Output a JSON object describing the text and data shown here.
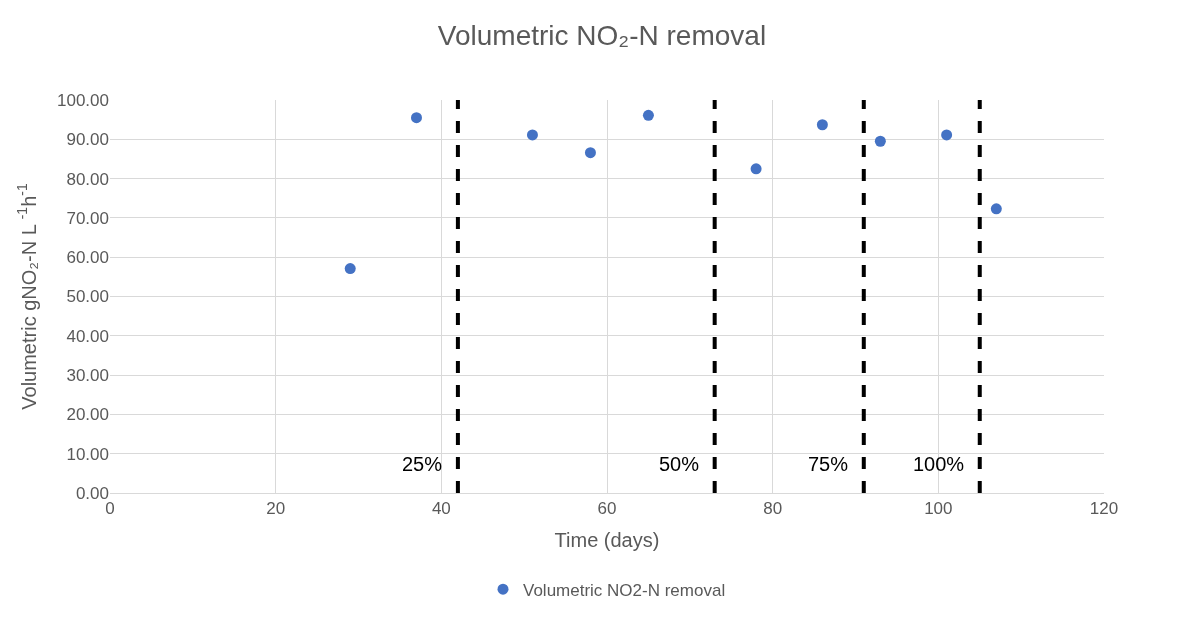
{
  "chart_data": {
    "type": "scatter",
    "title": "Volumetric NO₂-N removal",
    "xlabel": "Time (days)",
    "ylabel": "Volumetric gNO₂-N L $^{-1}$h$^{-1}$",
    "x": [
      29,
      37,
      51,
      58,
      65,
      78,
      86,
      93,
      101,
      107
    ],
    "series": [
      {
        "name": "Volumetric NO2-N removal",
        "color": "#4472c4",
        "values": [
          57.1,
          95.5,
          91.1,
          86.6,
          96.1,
          82.5,
          93.7,
          89.5,
          91.1,
          72.3
        ]
      }
    ],
    "xlim": [
      0,
      120
    ],
    "xticks": [
      0,
      20,
      40,
      60,
      80,
      100,
      120
    ],
    "ylim": [
      0,
      100
    ],
    "yticks": [
      {
        "value": 0,
        "label": "0.00"
      },
      {
        "value": 10,
        "label": "10.00"
      },
      {
        "value": 20,
        "label": "20.00"
      },
      {
        "value": 30,
        "label": "30.00"
      },
      {
        "value": 40,
        "label": "40.00"
      },
      {
        "value": 50,
        "label": "50.00"
      },
      {
        "value": 60,
        "label": "60.00"
      },
      {
        "value": 70,
        "label": "70.00"
      },
      {
        "value": 80,
        "label": "80.00"
      },
      {
        "value": 90,
        "label": "90.00"
      },
      {
        "value": 100,
        "label": "100.00"
      }
    ],
    "ref_lines": [
      {
        "axis": "x",
        "value": 42,
        "color": "#000000",
        "line_style": "dashed"
      },
      {
        "axis": "x",
        "value": 73,
        "color": "#000000",
        "line_style": "dashed"
      },
      {
        "axis": "x",
        "value": 91,
        "color": "#000000",
        "line_style": "dashed"
      },
      {
        "axis": "x",
        "value": 105,
        "color": "#000000",
        "line_style": "dashed"
      }
    ],
    "annotations": [
      "25%",
      "50%",
      "75%",
      "100%"
    ],
    "grid": true,
    "legend": "bottom",
    "marker": "circle"
  }
}
